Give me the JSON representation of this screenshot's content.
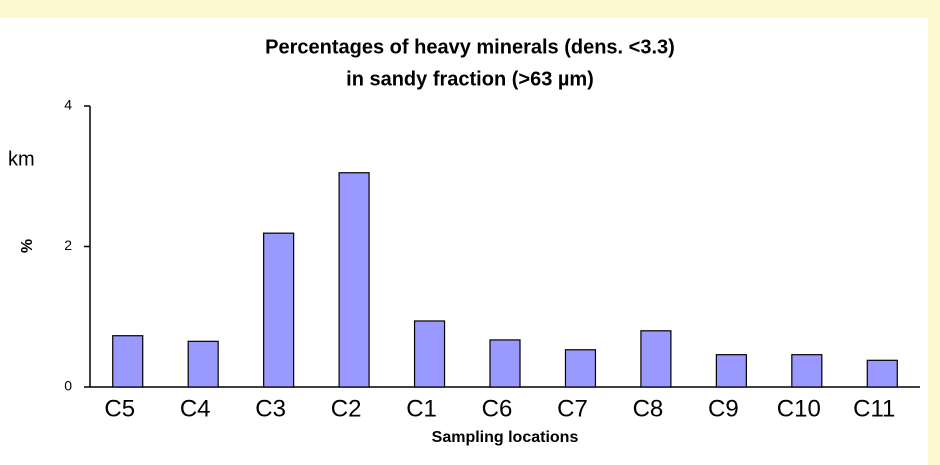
{
  "chart_data": {
    "type": "bar",
    "title": "Percentages of heavy minerals (dens. <3.3)",
    "subtitle": "in sandy fraction (>63 µm)",
    "x_label": "Sampling locations",
    "y_label": "%",
    "annotation": "km",
    "categories": [
      "C5",
      "C4",
      "C3",
      "C2",
      "C1",
      "C6",
      "C7",
      "C8",
      "C9",
      "C10",
      "C11"
    ],
    "values": [
      0.73,
      0.65,
      2.19,
      3.05,
      0.94,
      0.67,
      0.53,
      0.8,
      0.46,
      0.46,
      0.38
    ],
    "color": "#9999ff",
    "ylim": [
      0,
      4
    ],
    "yticks": [
      0,
      2,
      4
    ],
    "grid": false
  }
}
